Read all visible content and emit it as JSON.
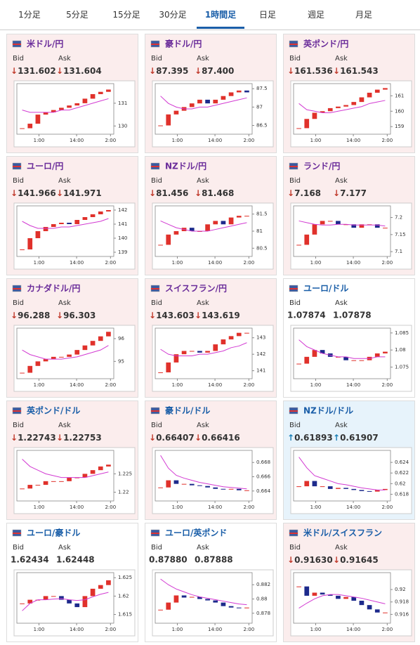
{
  "tabs": [
    "1分足",
    "5分足",
    "15分足",
    "30分足",
    "1時間足",
    "日足",
    "週足",
    "月足"
  ],
  "active_tab": 4,
  "bid_label": "Bid",
  "ask_label": "Ask",
  "chart_xticks": [
    "1:00",
    "14:00",
    "2:00"
  ],
  "cards": [
    {
      "name": "米ドル/円",
      "color": "#6a2c9a",
      "state": "down",
      "bid": "↓131.602",
      "ask": "↓131.604",
      "chart": {
        "ylim": [
          129.7,
          131.8
        ],
        "yticks": [
          130,
          131
        ],
        "close": [
          129.9,
          130.1,
          130.5,
          130.6,
          130.7,
          130.8,
          130.9,
          131.0,
          131.2,
          131.4,
          131.5,
          131.6
        ],
        "ma": [
          130.7,
          130.6,
          130.6,
          130.6,
          130.6,
          130.7,
          130.7,
          130.8,
          130.9,
          131.0,
          131.1,
          131.2
        ]
      }
    },
    {
      "name": "豪ドル/円",
      "color": "#6a2c9a",
      "state": "down",
      "bid": "↓87.395",
      "ask": "↓87.400",
      "chart": {
        "ylim": [
          86.3,
          87.6
        ],
        "yticks": [
          86.5,
          87,
          87.5
        ],
        "close": [
          86.5,
          86.8,
          86.9,
          87.0,
          87.1,
          87.2,
          87.1,
          87.2,
          87.3,
          87.4,
          87.45,
          87.4
        ],
        "ma": [
          87.3,
          87.1,
          87.0,
          86.95,
          86.95,
          87.0,
          87.0,
          87.05,
          87.1,
          87.15,
          87.2,
          87.25
        ]
      }
    },
    {
      "name": "英ポンド/円",
      "color": "#6a2c9a",
      "state": "down",
      "bid": "↓161.536",
      "ask": "↓161.543",
      "chart": {
        "ylim": [
          158.6,
          161.7
        ],
        "yticks": [
          159,
          160,
          161
        ],
        "close": [
          158.9,
          159.5,
          159.9,
          160.0,
          160.2,
          160.3,
          160.4,
          160.6,
          160.9,
          161.2,
          161.4,
          161.5
        ],
        "ma": [
          160.5,
          160.1,
          160.0,
          159.9,
          159.9,
          160.0,
          160.1,
          160.2,
          160.3,
          160.5,
          160.6,
          160.7
        ]
      }
    },
    {
      "name": "ユーロ/円",
      "color": "#6a2c9a",
      "state": "down",
      "bid": "↓141.966",
      "ask": "↓141.971",
      "chart": {
        "ylim": [
          138.8,
          142.2
        ],
        "yticks": [
          139,
          140,
          141,
          142
        ],
        "close": [
          139.2,
          140.0,
          140.5,
          140.8,
          141.0,
          141.1,
          141.0,
          141.3,
          141.5,
          141.7,
          141.9,
          142.0
        ],
        "ma": [
          141.2,
          140.9,
          140.7,
          140.7,
          140.7,
          140.8,
          140.8,
          140.9,
          141.0,
          141.1,
          141.2,
          141.4
        ]
      }
    },
    {
      "name": "NZドル/円",
      "color": "#6a2c9a",
      "state": "down",
      "bid": "↓81.456",
      "ask": "↓81.468",
      "chart": {
        "ylim": [
          80.3,
          81.7
        ],
        "yticks": [
          80.5,
          81,
          81.5
        ],
        "close": [
          80.6,
          80.9,
          81.0,
          81.1,
          81.0,
          81.0,
          81.2,
          81.3,
          81.2,
          81.4,
          81.45,
          81.45
        ],
        "ma": [
          81.3,
          81.2,
          81.1,
          81.05,
          81.0,
          81.0,
          81.0,
          81.05,
          81.1,
          81.15,
          81.2,
          81.25
        ]
      }
    },
    {
      "name": "ランド/円",
      "color": "#6a2c9a",
      "state": "down",
      "bid": "↓7.168",
      "ask": "↓7.177",
      "chart": {
        "ylim": [
          7.09,
          7.23
        ],
        "yticks": [
          7.1,
          7.15,
          7.2
        ],
        "close": [
          7.12,
          7.15,
          7.18,
          7.19,
          7.19,
          7.18,
          7.18,
          7.17,
          7.18,
          7.18,
          7.17,
          7.17
        ],
        "ma": [
          7.19,
          7.185,
          7.18,
          7.178,
          7.178,
          7.18,
          7.18,
          7.178,
          7.178,
          7.178,
          7.178,
          7.175
        ]
      }
    },
    {
      "name": "カナダドル/円",
      "color": "#6a2c9a",
      "state": "down",
      "bid": "↓96.288",
      "ask": "↓96.303",
      "chart": {
        "ylim": [
          94.3,
          96.4
        ],
        "yticks": [
          95,
          96
        ],
        "close": [
          94.5,
          94.8,
          95.0,
          95.1,
          95.2,
          95.2,
          95.3,
          95.5,
          95.7,
          95.9,
          96.1,
          96.3
        ],
        "ma": [
          95.5,
          95.3,
          95.2,
          95.1,
          95.1,
          95.1,
          95.15,
          95.2,
          95.3,
          95.4,
          95.5,
          95.7
        ]
      }
    },
    {
      "name": "スイスフラン/円",
      "color": "#6a2c9a",
      "state": "down",
      "bid": "↓143.603",
      "ask": "↓143.619",
      "chart": {
        "ylim": [
          140.6,
          143.5
        ],
        "yticks": [
          141,
          142,
          143
        ],
        "close": [
          140.9,
          141.5,
          142.0,
          142.2,
          142.2,
          142.1,
          142.2,
          142.6,
          142.9,
          143.1,
          143.3,
          143.3
        ],
        "ma": [
          142.3,
          142.0,
          141.9,
          141.9,
          141.9,
          142.0,
          142.0,
          142.1,
          142.2,
          142.4,
          142.5,
          142.7
        ]
      }
    },
    {
      "name": "ユーロ/ドル",
      "color": "#1a5ea8",
      "state": "flat",
      "bid": "1.07874",
      "ask": "1.07878",
      "chart": {
        "ylim": [
          1.072,
          1.086
        ],
        "yticks": [
          1.075,
          1.08,
          1.085
        ],
        "close": [
          1.076,
          1.078,
          1.08,
          1.079,
          1.078,
          1.078,
          1.077,
          1.077,
          1.077,
          1.078,
          1.079,
          1.0795
        ],
        "ma": [
          1.083,
          1.081,
          1.08,
          1.079,
          1.0785,
          1.078,
          1.078,
          1.0775,
          1.0775,
          1.0775,
          1.078,
          1.078
        ]
      }
    },
    {
      "name": "英ポンド/ドル",
      "color": "#1a5ea8",
      "state": "down",
      "bid": "↓1.22743",
      "ask": "↓1.22753",
      "chart": {
        "ylim": [
          1.218,
          1.231
        ],
        "yticks": [
          1.22,
          1.225
        ],
        "close": [
          1.221,
          1.222,
          1.222,
          1.223,
          1.223,
          1.223,
          1.224,
          1.224,
          1.225,
          1.226,
          1.227,
          1.2275
        ],
        "ma": [
          1.229,
          1.227,
          1.226,
          1.225,
          1.2245,
          1.224,
          1.224,
          1.224,
          1.224,
          1.2245,
          1.225,
          1.2255
        ]
      }
    },
    {
      "name": "豪ドル/ドル",
      "color": "#1a5ea8",
      "state": "down",
      "bid": "↓0.66407",
      "ask": "↓0.66416",
      "chart": {
        "ylim": [
          0.6628,
          0.6695
        ],
        "yticks": [
          0.664,
          0.666,
          0.668
        ],
        "close": [
          0.6645,
          0.6655,
          0.665,
          0.665,
          0.6648,
          0.6647,
          0.6645,
          0.6643,
          0.6642,
          0.6643,
          0.6641,
          0.6641
        ],
        "ma": [
          0.669,
          0.6672,
          0.6662,
          0.6658,
          0.6655,
          0.6652,
          0.665,
          0.6648,
          0.6646,
          0.6645,
          0.6644,
          0.6643
        ]
      }
    },
    {
      "name": "NZドル/ドル",
      "color": "#1a5ea8",
      "state": "up",
      "bid": "↑0.61893",
      "ask": "↑0.61907",
      "chart": {
        "ylim": [
          0.617,
          0.626
        ],
        "yticks": [
          0.618,
          0.62,
          0.622,
          0.624
        ],
        "close": [
          0.6195,
          0.6205,
          0.6195,
          0.6195,
          0.619,
          0.6192,
          0.619,
          0.6188,
          0.6186,
          0.6185,
          0.6188,
          0.619
        ],
        "ma": [
          0.625,
          0.623,
          0.6215,
          0.621,
          0.6205,
          0.62,
          0.6198,
          0.6195,
          0.6192,
          0.619,
          0.6188,
          0.6188
        ]
      }
    },
    {
      "name": "ユーロ/豪ドル",
      "color": "#1a5ea8",
      "state": "flat",
      "bid": "1.62434",
      "ask": "1.62448",
      "chart": {
        "ylim": [
          1.613,
          1.626
        ],
        "yticks": [
          1.615,
          1.62,
          1.625
        ],
        "close": [
          1.618,
          1.619,
          1.619,
          1.62,
          1.62,
          1.619,
          1.618,
          1.617,
          1.62,
          1.622,
          1.623,
          1.6243
        ],
        "ma": [
          1.616,
          1.618,
          1.619,
          1.619,
          1.6192,
          1.6193,
          1.619,
          1.6188,
          1.619,
          1.6198,
          1.6205,
          1.621
        ]
      }
    },
    {
      "name": "ユーロ/英ポンド",
      "color": "#1a5ea8",
      "state": "flat",
      "bid": "0.87880",
      "ask": "0.87888",
      "chart": {
        "ylim": [
          0.8768,
          0.8835
        ],
        "yticks": [
          0.878,
          0.88,
          0.882
        ],
        "close": [
          0.8785,
          0.8795,
          0.8805,
          0.8802,
          0.8803,
          0.88,
          0.8798,
          0.8795,
          0.879,
          0.8788,
          0.8787,
          0.8788
        ],
        "ma": [
          0.8828,
          0.882,
          0.8814,
          0.881,
          0.8806,
          0.8803,
          0.8801,
          0.8799,
          0.8797,
          0.8795,
          0.8793,
          0.8792
        ]
      }
    },
    {
      "name": "米ドル/スイスフラン",
      "color": "#1a5ea8",
      "state": "down",
      "bid": "↓0.91630",
      "ask": "↓0.91645",
      "chart": {
        "ylim": [
          0.9148,
          0.9225
        ],
        "yticks": [
          0.916,
          0.918,
          0.92
        ],
        "close": [
          0.9205,
          0.919,
          0.9195,
          0.9192,
          0.919,
          0.9185,
          0.9188,
          0.9182,
          0.9175,
          0.9168,
          0.9163,
          0.9163
        ],
        "ma": [
          0.917,
          0.9178,
          0.9185,
          0.919,
          0.9192,
          0.9192,
          0.919,
          0.9188,
          0.9186,
          0.9183,
          0.918,
          0.9177
        ]
      }
    }
  ]
}
